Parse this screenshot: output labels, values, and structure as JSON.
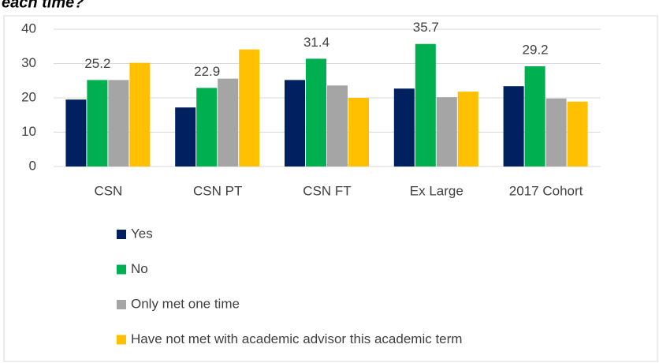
{
  "chart_data": {
    "type": "bar",
    "title": "each time?",
    "categories": [
      "CSN",
      "CSN PT",
      "CSN FT",
      "Ex Large",
      "2017 Cohort"
    ],
    "series": [
      {
        "name": "Yes",
        "color": "#002060",
        "values": [
          19.5,
          17.2,
          25.2,
          22.7,
          23.4
        ]
      },
      {
        "name": "No",
        "color": "#00b050",
        "values": [
          25.2,
          22.9,
          31.4,
          35.7,
          29.2
        ],
        "data_labels": true
      },
      {
        "name": "Only met one time",
        "color": "#a5a5a5",
        "values": [
          25.2,
          25.6,
          23.6,
          20.2,
          19.8
        ]
      },
      {
        "name": "Have not met with academic advisor this academic term",
        "color": "#ffc000",
        "values": [
          30.2,
          34.1,
          20.0,
          21.8,
          18.9
        ]
      }
    ],
    "ylim": [
      0,
      40
    ],
    "yticks": [
      0,
      10,
      20,
      30,
      40
    ],
    "grid": true,
    "legend": "bottom-left"
  }
}
